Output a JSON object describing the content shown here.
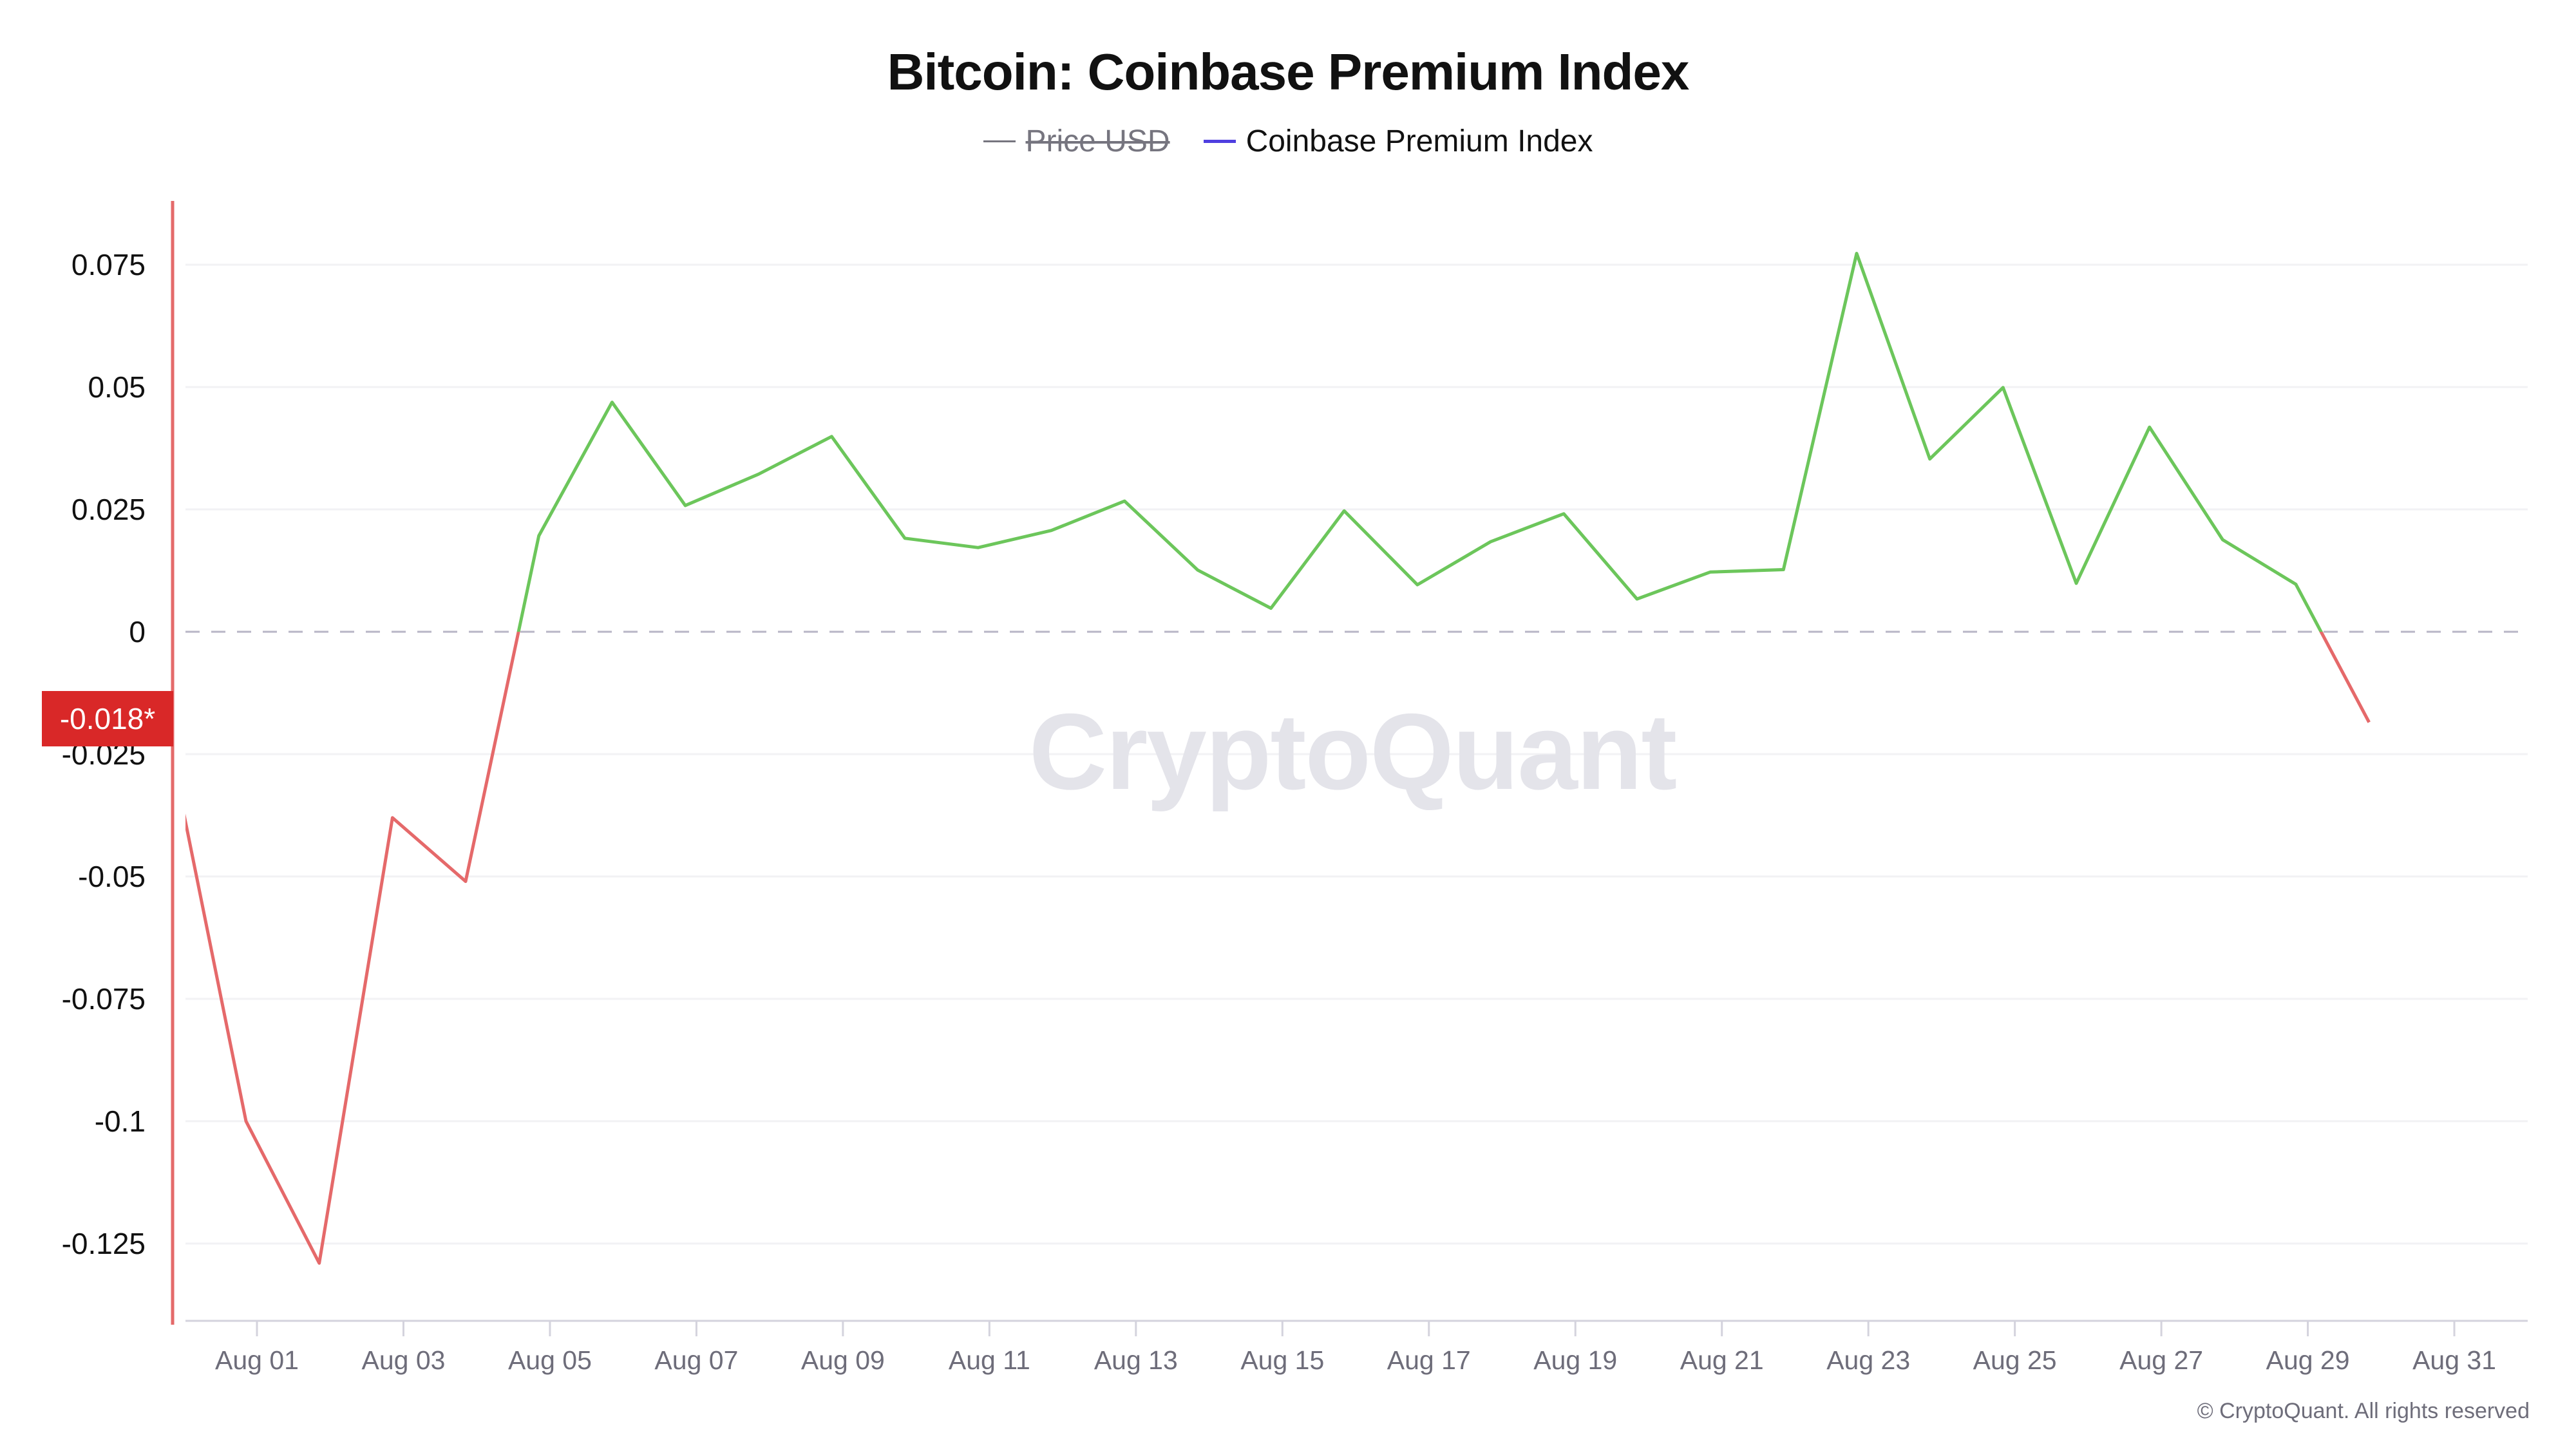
{
  "header": {
    "title": "Bitcoin: Coinbase Premium Index"
  },
  "legend": [
    {
      "label": "Price USD",
      "color": "#76757f",
      "hidden": true
    },
    {
      "label": "Coinbase Premium Index",
      "color": "#4f3fe0",
      "hidden": false
    }
  ],
  "last_value_badge": "-0.018*",
  "watermark": "CryptoQuant",
  "footer": {
    "copyright": "© CryptoQuant. All rights reserved"
  },
  "colors": {
    "positive": "#6cc65b",
    "negative": "#e5696a",
    "zero_line": "#b8b6c6",
    "grid": "#f2f2f4",
    "x_axis": "#d4d3dd",
    "y_axis": "#e46a6a",
    "badge": "#d92828"
  },
  "chart_data": {
    "type": "line",
    "title": "Bitcoin: Coinbase Premium Index",
    "xlabel": "",
    "ylabel": "",
    "ylim": [
      -0.14,
      0.085
    ],
    "grid": true,
    "legend_position": "top",
    "y_ticks": [
      "0.075",
      "0.05",
      "0.025",
      "0",
      "-0.025",
      "-0.05",
      "-0.075",
      "-0.1",
      "-0.125"
    ],
    "x_ticks": [
      "Aug 01",
      "Aug 03",
      "Aug 05",
      "Aug 07",
      "Aug 09",
      "Aug 11",
      "Aug 13",
      "Aug 15",
      "Aug 17",
      "Aug 19",
      "Aug 21",
      "Aug 23",
      "Aug 25",
      "Aug 27",
      "Aug 29",
      "Aug 31"
    ],
    "x": [
      "Jul 31",
      "Aug 01",
      "Aug 02",
      "Aug 03",
      "Aug 04",
      "Aug 05",
      "Aug 06",
      "Aug 07",
      "Aug 08",
      "Aug 09",
      "Aug 10",
      "Aug 11",
      "Aug 12",
      "Aug 13",
      "Aug 14",
      "Aug 15",
      "Aug 16",
      "Aug 17",
      "Aug 18",
      "Aug 19",
      "Aug 20",
      "Aug 21",
      "Aug 22",
      "Aug 23",
      "Aug 24",
      "Aug 25",
      "Aug 26",
      "Aug 27",
      "Aug 28",
      "Aug 29",
      "Aug 30"
    ],
    "series": [
      {
        "name": "Coinbase Premium Index",
        "values": [
          -0.026,
          -0.1,
          -0.129,
          -0.038,
          -0.051,
          0.0196,
          0.0469,
          0.0258,
          0.0322,
          0.0399,
          0.0191,
          0.0172,
          0.0207,
          0.0267,
          0.0126,
          0.0048,
          0.0247,
          0.0096,
          0.0184,
          0.0241,
          0.0067,
          0.0122,
          0.0127,
          0.0773,
          0.0353,
          0.0499,
          0.0099,
          0.0418,
          0.0188,
          0.0097,
          -0.0185
        ]
      },
      {
        "name": "Price USD",
        "hidden": true,
        "values": []
      }
    ],
    "annotations": [
      "-0.018* (latest value)",
      "zero reference line (dashed)"
    ]
  }
}
